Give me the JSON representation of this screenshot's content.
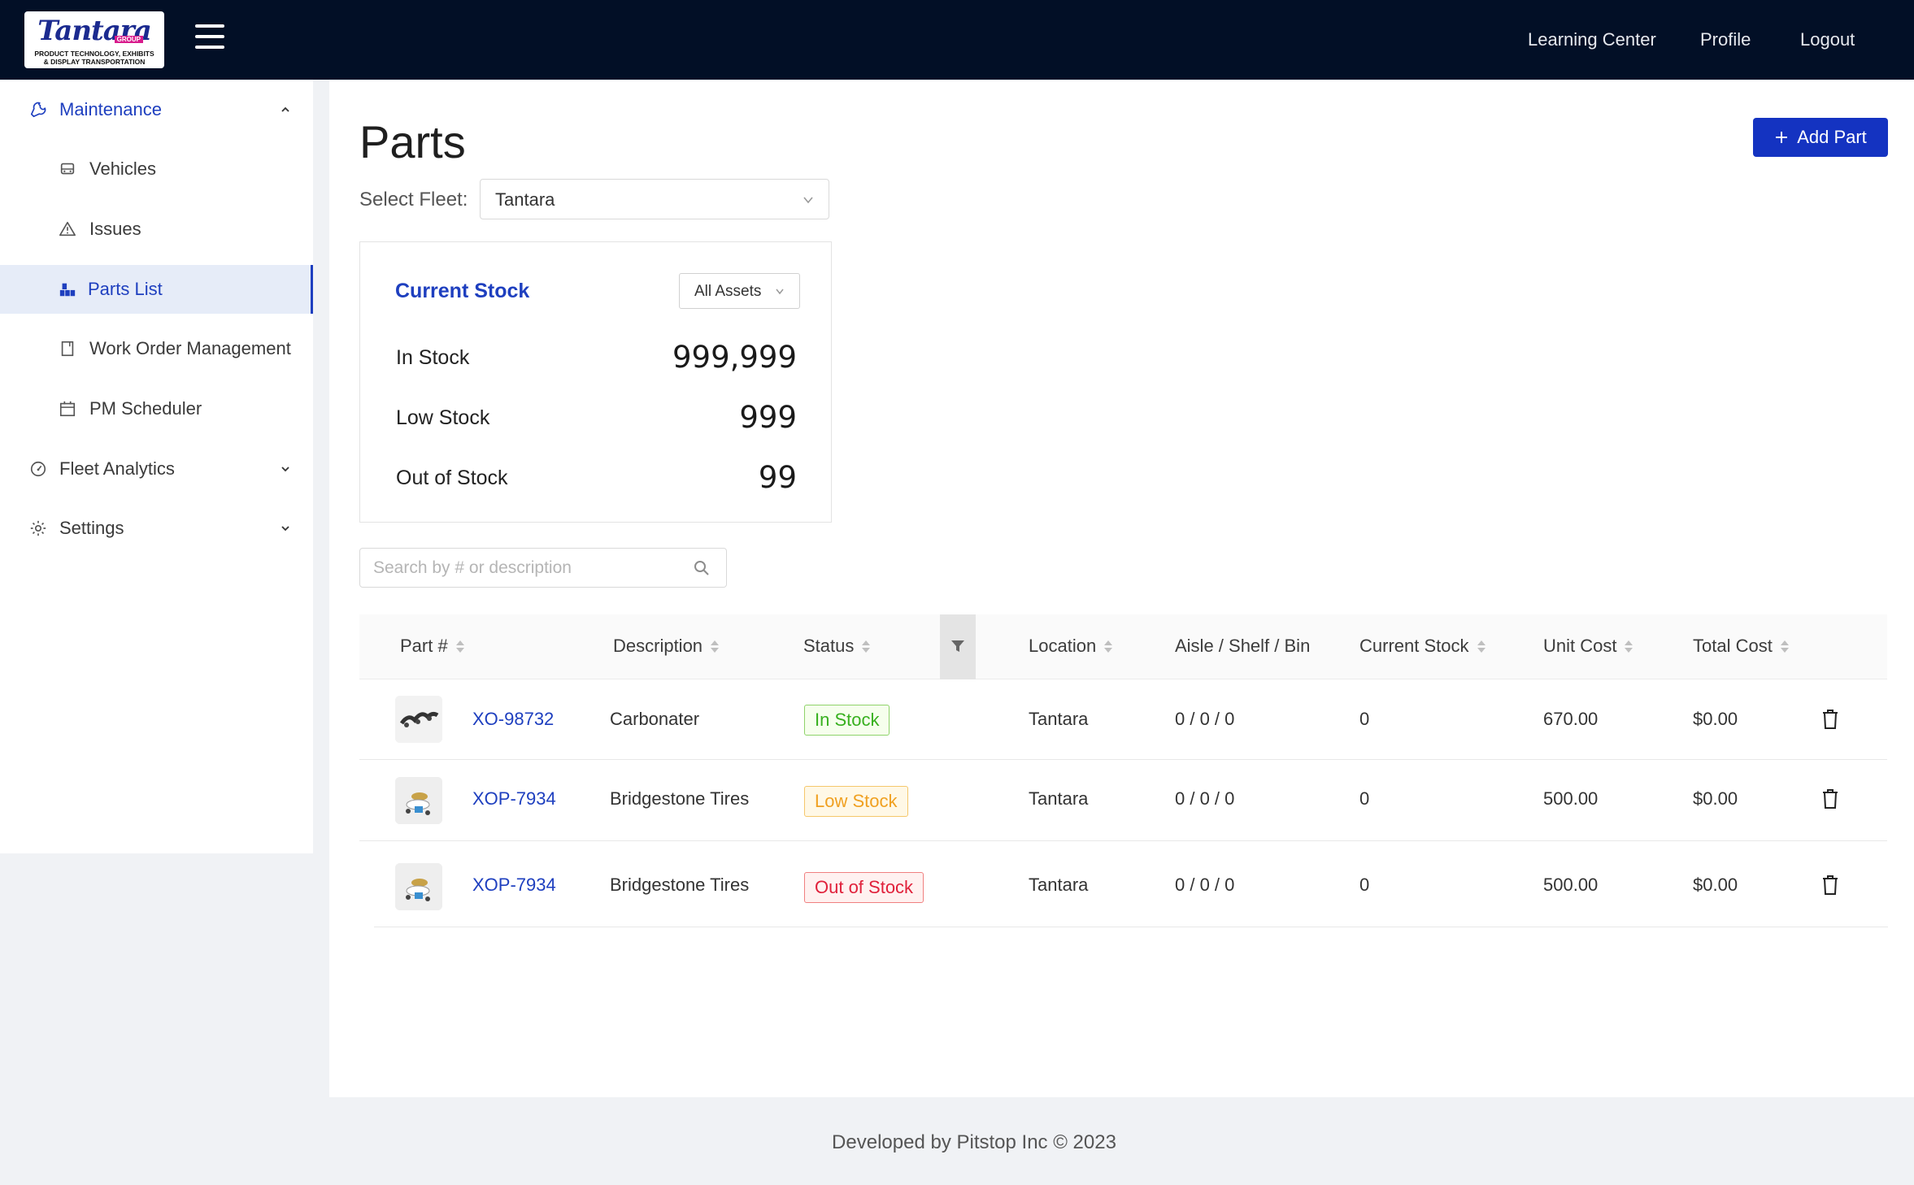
{
  "header": {
    "logo": {
      "brand": "Tantara",
      "brand_sub": "GROUP",
      "tagline_1": "PRODUCT TECHNOLOGY, EXHIBITS",
      "tagline_2": "& DISPLAY TRANSPORTATION"
    },
    "nav": {
      "learning_center": "Learning Center",
      "profile": "Profile",
      "logout": "Logout"
    }
  },
  "sidebar": {
    "maintenance": {
      "label": "Maintenance",
      "icon": "wrench-icon"
    },
    "items": [
      {
        "label": "Vehicles",
        "icon": "car-icon"
      },
      {
        "label": "Issues",
        "icon": "warning-icon"
      },
      {
        "label": "Parts List",
        "icon": "boxes-icon"
      },
      {
        "label": "Work Order Management",
        "icon": "document-icon"
      },
      {
        "label": "PM Scheduler",
        "icon": "calendar-icon"
      }
    ],
    "fleet_analytics": {
      "label": "Fleet Analytics",
      "icon": "gauge-icon"
    },
    "settings": {
      "label": "Settings",
      "icon": "gear-icon"
    }
  },
  "page": {
    "title": "Parts",
    "add_button": "Add Part",
    "fleet_label": "Select Fleet:",
    "fleet_value": "Tantara"
  },
  "stock": {
    "title": "Current Stock",
    "filter": "All Assets",
    "in_stock_label": "In Stock",
    "in_stock_value": "999,999",
    "low_stock_label": "Low Stock",
    "low_stock_value": "999",
    "out_of_stock_label": "Out of Stock",
    "out_of_stock_value": "99"
  },
  "search": {
    "placeholder": "Search by # or description"
  },
  "table": {
    "columns": {
      "part": "Part #",
      "description": "Description",
      "status": "Status",
      "location": "Location",
      "aisle": "Aisle / Shelf / Bin",
      "current_stock": "Current Stock",
      "unit_cost": "Unit Cost",
      "total_cost": "Total Cost"
    },
    "rows": [
      {
        "part": "XO-98732",
        "description": "Carbonater",
        "status": "In Stock",
        "location": "Tantara",
        "aisle": "0 / 0 / 0",
        "current_stock": "0",
        "unit_cost": "670.00",
        "total_cost": "$0.00"
      },
      {
        "part": "XOP-7934",
        "description": "Bridgestone Tires",
        "status": "Low Stock",
        "location": "Tantara",
        "aisle": "0 / 0 / 0",
        "current_stock": "0",
        "unit_cost": "500.00",
        "total_cost": "$0.00"
      },
      {
        "part": "XOP-7934",
        "description": "Bridgestone Tires",
        "status": "Out of Stock",
        "location": "Tantara",
        "aisle": "0 / 0 / 0",
        "current_stock": "0",
        "unit_cost": "500.00",
        "total_cost": "$0.00"
      }
    ]
  },
  "footer": {
    "text": "Developed by Pitstop Inc © 2023"
  },
  "colors": {
    "primary": "#1433c1",
    "topbar": "#020f26",
    "in_stock": "#38b01f",
    "low_stock": "#f0a020",
    "out_of_stock": "#e0203a"
  }
}
